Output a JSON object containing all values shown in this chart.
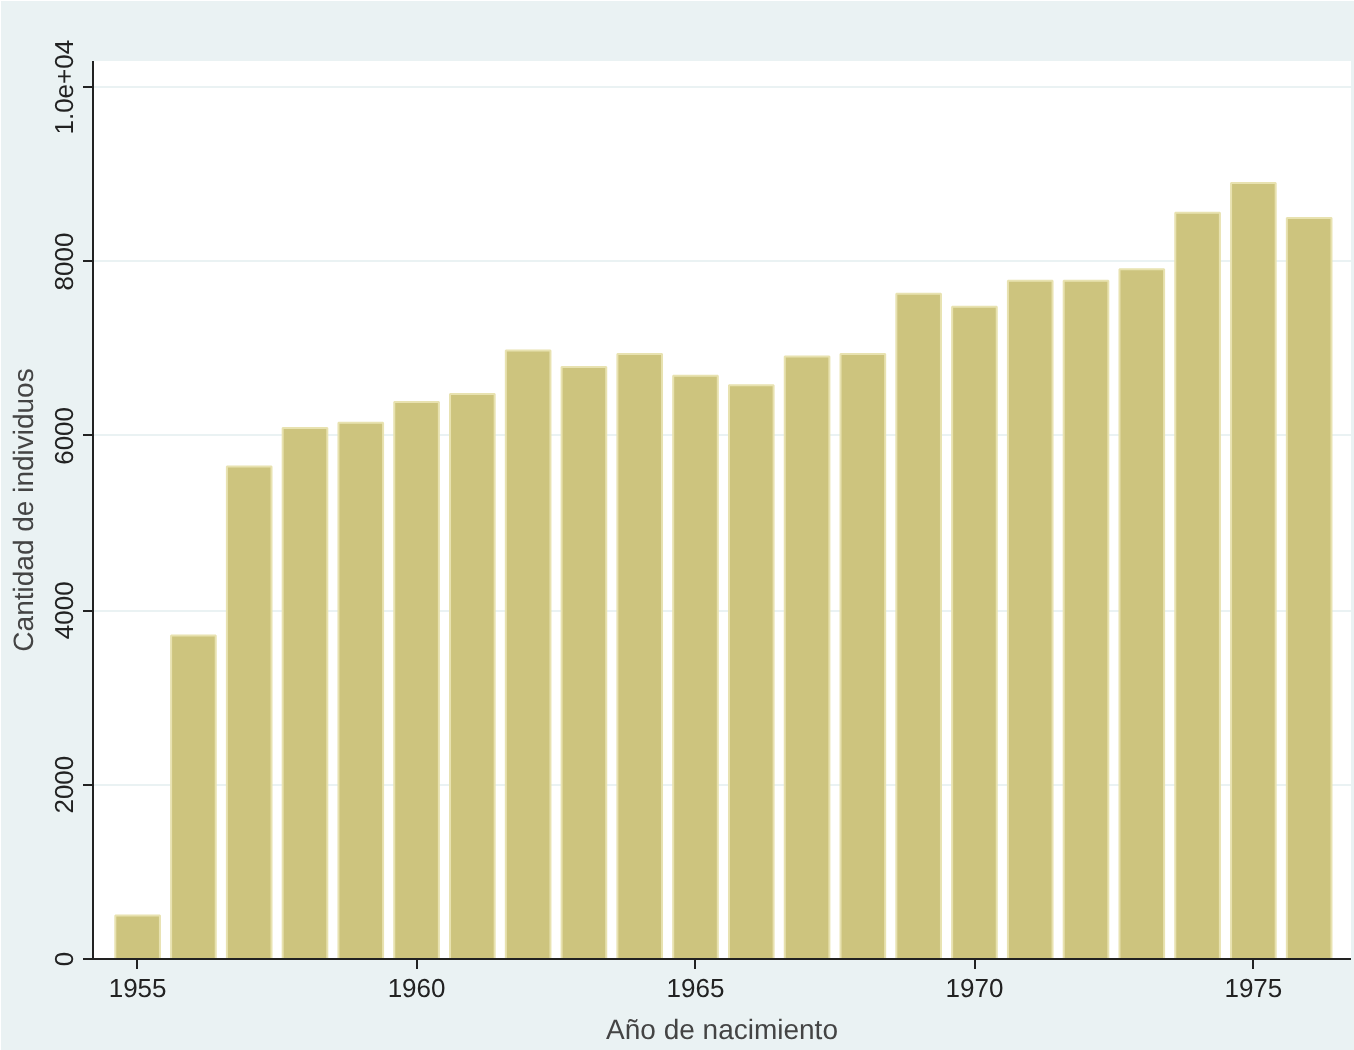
{
  "chart_data": {
    "type": "bar",
    "xlabel": "Año de nacimiento",
    "ylabel": "Cantidad de individuos",
    "x": [
      1955,
      1956,
      1957,
      1958,
      1959,
      1960,
      1961,
      1962,
      1963,
      1964,
      1965,
      1966,
      1967,
      1968,
      1969,
      1970,
      1971,
      1972,
      1973,
      1974,
      1975,
      1976
    ],
    "values": [
      500,
      3710,
      5650,
      6090,
      6150,
      6390,
      6480,
      6980,
      6790,
      6940,
      6690,
      6580,
      6910,
      6940,
      7630,
      7480,
      7780,
      7780,
      7910,
      8560,
      8900,
      8500
    ],
    "color": "#cdc47e",
    "xlim": [
      1954.2,
      1976.75
    ],
    "xticks": [
      1955,
      1960,
      1965,
      1970,
      1975
    ],
    "ylim": [
      0,
      10300
    ],
    "yticks": [
      0,
      2000,
      4000,
      6000,
      8000,
      {
        "value": 10000,
        "label": "1.0e+04"
      }
    ],
    "grid": "y"
  }
}
